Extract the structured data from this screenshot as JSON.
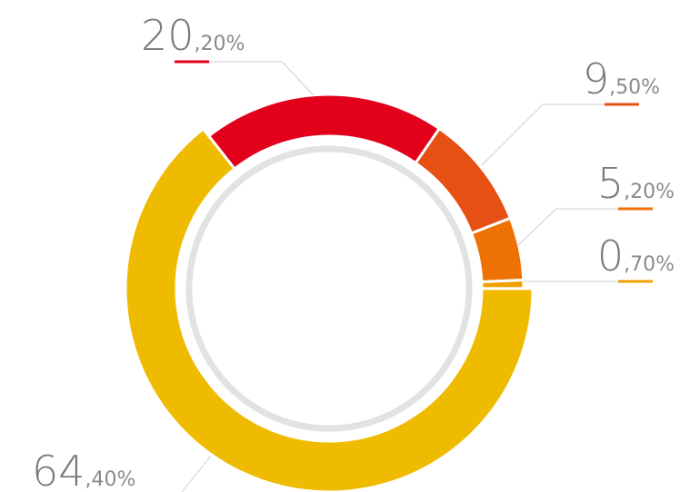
{
  "chart_data": {
    "type": "donut",
    "categories": [
      null,
      null,
      null,
      null,
      null
    ],
    "values": [
      20.2,
      9.5,
      5.2,
      0.7,
      64.4
    ],
    "value_labels": [
      "20,20%",
      "9,50%",
      "5,20%",
      "0,70%",
      "64,40%"
    ],
    "colors": [
      "#e2001a",
      "#e65014",
      "#ee7203",
      "#f0a000",
      "#efbb00"
    ]
  }
}
